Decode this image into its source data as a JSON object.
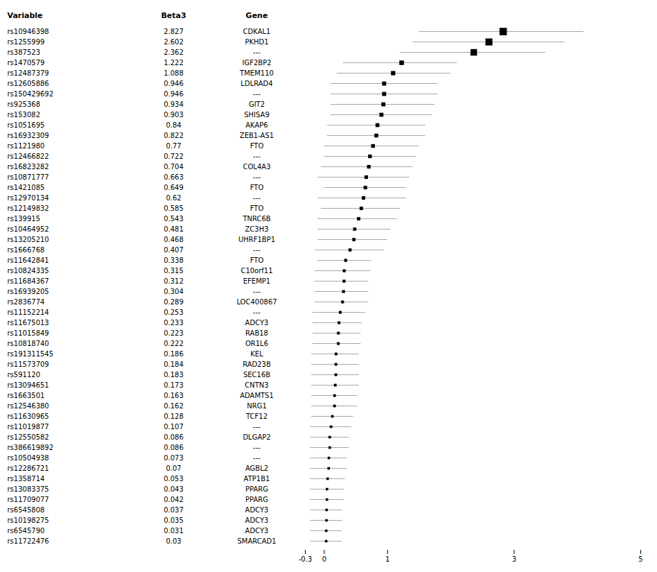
{
  "chart_data": {
    "type": "forest",
    "columns": [
      "Variable",
      "Beta3",
      "Gene"
    ],
    "categories": [
      "rs10946398",
      "rs1255999",
      "rs387523",
      "rs1470579",
      "rs12487379",
      "rs12605886",
      "rs150429692",
      "rs925368",
      "rs153082",
      "rs1051695",
      "rs16932309",
      "rs1121980",
      "rs12466822",
      "rs16823282",
      "rs10871777",
      "rs1421085",
      "rs12970134",
      "rs12149832",
      "rs139915",
      "rs10464952",
      "rs13205210",
      "rs1666768",
      "rs11642841",
      "rs10824335",
      "rs11684367",
      "rs16939205",
      "rs2836774",
      "rs11152214",
      "rs11675013",
      "rs11015849",
      "rs10818740",
      "rs191311545",
      "rs11573709",
      "rs591120",
      "rs13094651",
      "rs1663501",
      "rs12546380",
      "rs11630965",
      "rs11019877",
      "rs12550582",
      "rs386619892",
      "rs10504938",
      "rs12286721",
      "rs1358714",
      "rs13083375",
      "rs11709077",
      "rs6545808",
      "rs10198275",
      "rs6545790",
      "rs11722476"
    ],
    "values": [
      2.827,
      2.602,
      2.362,
      1.222,
      1.088,
      0.946,
      0.946,
      0.934,
      0.903,
      0.84,
      0.822,
      0.77,
      0.722,
      0.704,
      0.663,
      0.649,
      0.62,
      0.585,
      0.543,
      0.481,
      0.468,
      0.407,
      0.338,
      0.315,
      0.312,
      0.304,
      0.289,
      0.253,
      0.233,
      0.223,
      0.222,
      0.186,
      0.184,
      0.183,
      0.173,
      0.163,
      0.162,
      0.128,
      0.107,
      0.086,
      0.086,
      0.073,
      0.07,
      0.053,
      0.043,
      0.042,
      0.037,
      0.035,
      0.031,
      0.03
    ],
    "genes": [
      "CDKAL1",
      "PKHD1",
      "---",
      "IGF2BP2",
      "TMEM110",
      "LDLRAD4",
      "---",
      "GIT2",
      "SHISA9",
      "AKAP6",
      "ZEB1-AS1",
      "FTO",
      "---",
      "COL4A3",
      "---",
      "FTO",
      "---",
      "FTO",
      "TNRC6B",
      "ZC3H3",
      "UHRF1BP1",
      "---",
      "FTO",
      "C10orf11",
      "EFEMP1",
      "---",
      "LOC400867",
      "---",
      "ADCY3",
      "RAB18",
      "OR1L6",
      "KEL",
      "RAD23B",
      "SEC16B",
      "CNTN3",
      "ADAMTS1",
      "NRG1",
      "TCF12",
      "---",
      "DLGAP2",
      "---",
      "---",
      "AGBL2",
      "ATP1B1",
      "PPARG",
      "PPARG",
      "ADCY3",
      "ADCY3",
      "ADCY3",
      "SMARCAD1"
    ],
    "ci_lower": [
      1.5,
      1.4,
      1.2,
      0.3,
      0.2,
      0.1,
      0.1,
      0.1,
      0.1,
      0.05,
      0.05,
      0.0,
      0.0,
      -0.05,
      -0.1,
      0.0,
      -0.1,
      -0.05,
      -0.1,
      -0.1,
      -0.1,
      -0.15,
      -0.1,
      -0.15,
      -0.15,
      -0.15,
      -0.15,
      -0.18,
      -0.18,
      -0.18,
      -0.18,
      -0.2,
      -0.2,
      -0.2,
      -0.2,
      -0.2,
      -0.2,
      -0.2,
      -0.22,
      -0.22,
      -0.22,
      -0.22,
      -0.22,
      -0.22,
      -0.22,
      -0.22,
      -0.22,
      -0.22,
      -0.22,
      -0.22
    ],
    "ci_upper": [
      4.1,
      3.8,
      3.5,
      2.1,
      2.0,
      1.8,
      1.8,
      1.75,
      1.7,
      1.6,
      1.6,
      1.5,
      1.45,
      1.4,
      1.35,
      1.3,
      1.3,
      1.2,
      1.15,
      1.05,
      1.0,
      0.95,
      0.75,
      0.73,
      0.7,
      0.7,
      0.7,
      0.65,
      0.6,
      0.58,
      0.58,
      0.55,
      0.55,
      0.55,
      0.55,
      0.52,
      0.52,
      0.46,
      0.43,
      0.39,
      0.39,
      0.36,
      0.36,
      0.33,
      0.31,
      0.31,
      0.29,
      0.29,
      0.28,
      0.28
    ],
    "xlim": [
      -0.3,
      5
    ],
    "xticks": [
      -0.3,
      0,
      1,
      3,
      5
    ],
    "marker": "square",
    "data_labels": true
  }
}
